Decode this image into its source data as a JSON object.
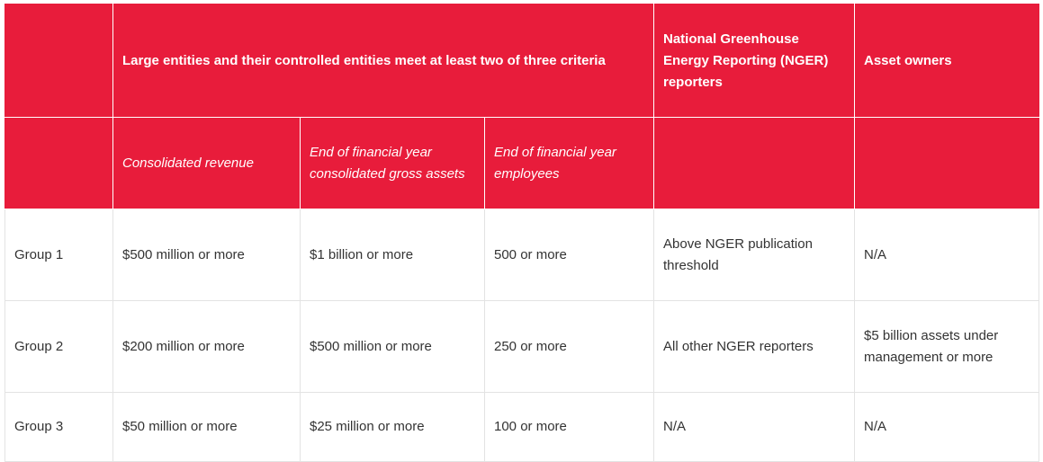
{
  "header": {
    "large_entities": "Large entities and their controlled entities meet at least two of three criteria",
    "nger": "National Greenhouse Energy Reporting (NGER) reporters",
    "asset_owners": "Asset owners"
  },
  "subheader": {
    "revenue": "Consolidated revenue",
    "gross_assets": "End of financial year consolidated gross assets",
    "employees": "End of financial year employees"
  },
  "rows": [
    {
      "group": "Group 1",
      "revenue": "$500 million or more",
      "assets": "$1 billion or more",
      "employees": "500 or more",
      "nger": "Above NGER publication threshold",
      "asset_owners": "N/A"
    },
    {
      "group": "Group 2",
      "revenue": "$200 million or more",
      "assets": "$500 million or more",
      "employees": "250 or more",
      "nger": "All other NGER reporters",
      "asset_owners": "$5 billion assets under management or more"
    },
    {
      "group": "Group 3",
      "revenue": "$50 million or more",
      "assets": "$25 million or more",
      "employees": "100 or more",
      "nger": "N/A",
      "asset_owners": "N/A"
    }
  ],
  "colors": {
    "header_bg": "#e81c3b",
    "border": "#e3e3e3"
  }
}
